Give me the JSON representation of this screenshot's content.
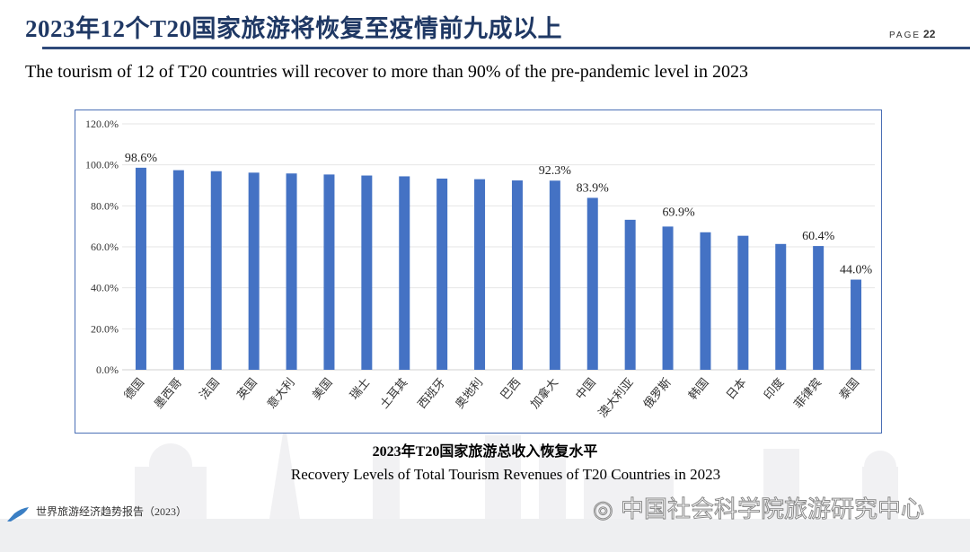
{
  "header": {
    "title": "2023年12个T20国家旅游将恢复至疫情前九成以上",
    "page_label": "PAGE",
    "page_number": "22"
  },
  "subtitle": "The tourism of 12 of T20 countries will recover to more than 90% of the pre-pandemic level in 2023",
  "caption": {
    "zh": "2023年T20国家旅游总收入恢复水平",
    "en": "Recovery Levels of Total Tourism Revenues of T20 Countries in 2023"
  },
  "footer": {
    "report": "世界旅游经济趋势报告（2023）",
    "watermark": "中国社会科学院旅游研究中心"
  },
  "colors": {
    "bar": "#4472c4",
    "title": "#1f3864"
  },
  "chart_data": {
    "type": "bar",
    "categories": [
      "德国",
      "墨西哥",
      "法国",
      "英国",
      "意大利",
      "美国",
      "瑞士",
      "土耳其",
      "西班牙",
      "奥地利",
      "巴西",
      "加拿大",
      "中国",
      "澳大利亚",
      "俄罗斯",
      "韩国",
      "日本",
      "印度",
      "菲律宾",
      "泰国"
    ],
    "values": [
      98.6,
      97.4,
      96.9,
      96.2,
      95.8,
      95.3,
      94.8,
      94.4,
      93.3,
      93.0,
      92.4,
      92.3,
      83.9,
      73.2,
      69.9,
      67.1,
      65.4,
      61.4,
      60.4,
      44.0
    ],
    "data_labels": {
      "0": "98.6%",
      "11": "92.3%",
      "12": "83.9%",
      "14": "69.9%",
      "18": "60.4%",
      "19": "44.0%"
    },
    "yticks": [
      "0.0%",
      "20.0%",
      "40.0%",
      "60.0%",
      "80.0%",
      "100.0%",
      "120.0%"
    ],
    "ylim": [
      0,
      120
    ],
    "grid": true,
    "legend": "none"
  }
}
